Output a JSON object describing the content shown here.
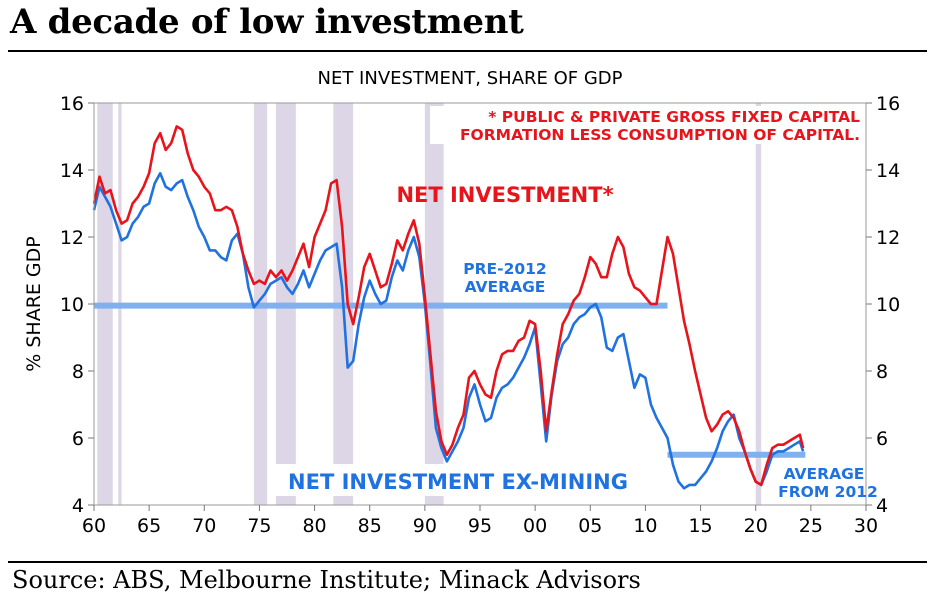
{
  "headline": "A decade of low investment",
  "source": "Source: ABS, Melbourne Institute; Minack Advisors",
  "colors": {
    "net_investment": "#e8141c",
    "net_investment_ex_mining": "#1f72e0",
    "average_band": "#7fb0ef",
    "recession_shade": "#ddd6e6"
  },
  "chart_data": {
    "type": "line",
    "title": "NET INVESTMENT, SHARE OF GDP",
    "ylabel": "% SHARE GDP",
    "xlabel": "",
    "xlim": [
      1960,
      2030
    ],
    "ylim": [
      4,
      16
    ],
    "x_ticks": [
      1960,
      1965,
      1970,
      1975,
      1980,
      1985,
      1990,
      1995,
      2000,
      2005,
      2010,
      2015,
      2020,
      2025,
      2030
    ],
    "x_tick_labels": [
      "60",
      "65",
      "70",
      "75",
      "80",
      "85",
      "90",
      "95",
      "00",
      "05",
      "10",
      "15",
      "20",
      "25",
      "30"
    ],
    "y_ticks": [
      4,
      6,
      8,
      10,
      12,
      14,
      16
    ],
    "y_tick_labels": [
      "4",
      "6",
      "8",
      "10",
      "12",
      "14",
      "16"
    ],
    "recession_periods": [
      [
        1960.3,
        1961.7
      ],
      [
        1962.2,
        1962.5
      ],
      [
        1974.5,
        1975.7
      ],
      [
        1976.5,
        1978.3
      ],
      [
        1981.7,
        1983.5
      ],
      [
        1990.0,
        1991.7
      ],
      [
        2020.0,
        2020.5
      ]
    ],
    "series": [
      {
        "name": "NET INVESTMENT*",
        "x": [
          1960.0,
          1960.5,
          1961.0,
          1961.5,
          1962.0,
          1962.5,
          1963.0,
          1963.5,
          1964.0,
          1964.5,
          1965.0,
          1965.5,
          1966.0,
          1966.5,
          1967.0,
          1967.5,
          1968.0,
          1968.5,
          1969.0,
          1969.5,
          1970.0,
          1970.5,
          1971.0,
          1971.5,
          1972.0,
          1972.5,
          1973.0,
          1973.5,
          1974.0,
          1974.5,
          1975.0,
          1975.5,
          1976.0,
          1976.5,
          1977.0,
          1977.5,
          1978.0,
          1978.5,
          1979.0,
          1979.5,
          1980.0,
          1980.5,
          1981.0,
          1981.5,
          1982.0,
          1982.5,
          1983.0,
          1983.5,
          1984.0,
          1984.5,
          1985.0,
          1985.5,
          1986.0,
          1986.5,
          1987.0,
          1987.5,
          1988.0,
          1988.5,
          1989.0,
          1989.5,
          1990.0,
          1990.5,
          1991.0,
          1991.5,
          1992.0,
          1992.5,
          1993.0,
          1993.5,
          1994.0,
          1994.5,
          1995.0,
          1995.5,
          1996.0,
          1996.5,
          1997.0,
          1997.5,
          1998.0,
          1998.5,
          1999.0,
          1999.5,
          2000.0,
          2000.5,
          2001.0,
          2001.5,
          2002.0,
          2002.5,
          2003.0,
          2003.5,
          2004.0,
          2004.5,
          2005.0,
          2005.5,
          2006.0,
          2006.5,
          2007.0,
          2007.5,
          2008.0,
          2008.5,
          2009.0,
          2009.5,
          2010.0,
          2010.5,
          2011.0,
          2011.5,
          2012.0,
          2012.5,
          2013.0,
          2013.5,
          2014.0,
          2014.5,
          2015.0,
          2015.5,
          2016.0,
          2016.5,
          2017.0,
          2017.5,
          2018.0,
          2018.5,
          2019.0,
          2019.5,
          2020.0,
          2020.5,
          2021.0,
          2021.5,
          2022.0,
          2022.5,
          2023.0,
          2023.5,
          2024.0,
          2024.3
        ],
        "values": [
          13.0,
          13.8,
          13.3,
          13.4,
          12.8,
          12.4,
          12.5,
          13.0,
          13.2,
          13.5,
          13.9,
          14.8,
          15.1,
          14.6,
          14.8,
          15.3,
          15.2,
          14.5,
          14.0,
          13.8,
          13.5,
          13.3,
          12.8,
          12.8,
          12.9,
          12.8,
          12.3,
          11.5,
          11.0,
          10.6,
          10.7,
          10.6,
          11.0,
          10.8,
          11.0,
          10.7,
          11.0,
          11.4,
          11.8,
          11.1,
          12.0,
          12.4,
          12.8,
          13.6,
          13.7,
          12.3,
          10.0,
          9.4,
          10.2,
          11.1,
          11.5,
          11.0,
          10.5,
          10.6,
          11.2,
          11.9,
          11.6,
          12.1,
          12.5,
          11.8,
          10.2,
          8.5,
          6.8,
          5.9,
          5.5,
          5.8,
          6.3,
          6.7,
          7.8,
          8.0,
          7.6,
          7.3,
          7.2,
          8.0,
          8.5,
          8.6,
          8.6,
          8.9,
          9.0,
          9.5,
          9.4,
          8.0,
          6.2,
          7.4,
          8.5,
          9.4,
          9.7,
          10.1,
          10.3,
          10.8,
          11.4,
          11.2,
          10.8,
          10.8,
          11.5,
          12.0,
          11.7,
          10.9,
          10.5,
          10.4,
          10.2,
          10.0,
          10.0,
          11.0,
          12.0,
          11.5,
          10.5,
          9.5,
          8.8,
          8.0,
          7.3,
          6.6,
          6.2,
          6.4,
          6.7,
          6.8,
          6.6,
          6.2,
          5.6,
          5.1,
          4.7,
          4.6,
          5.2,
          5.7,
          5.8,
          5.8,
          5.9,
          6.0,
          6.1,
          5.7
        ],
        "color": "#e8141c"
      },
      {
        "name": "NET INVESTMENT EX-MINING",
        "x": [
          1960.0,
          1960.5,
          1961.0,
          1961.5,
          1962.0,
          1962.5,
          1963.0,
          1963.5,
          1964.0,
          1964.5,
          1965.0,
          1965.5,
          1966.0,
          1966.5,
          1967.0,
          1967.5,
          1968.0,
          1968.5,
          1969.0,
          1969.5,
          1970.0,
          1970.5,
          1971.0,
          1971.5,
          1972.0,
          1972.5,
          1973.0,
          1973.5,
          1974.0,
          1974.5,
          1975.0,
          1975.5,
          1976.0,
          1976.5,
          1977.0,
          1977.5,
          1978.0,
          1978.5,
          1979.0,
          1979.5,
          1980.0,
          1980.5,
          1981.0,
          1981.5,
          1982.0,
          1982.5,
          1983.0,
          1983.5,
          1984.0,
          1984.5,
          1985.0,
          1985.5,
          1986.0,
          1986.5,
          1987.0,
          1987.5,
          1988.0,
          1988.5,
          1989.0,
          1989.5,
          1990.0,
          1990.5,
          1991.0,
          1991.5,
          1992.0,
          1992.5,
          1993.0,
          1993.5,
          1994.0,
          1994.5,
          1995.0,
          1995.5,
          1996.0,
          1996.5,
          1997.0,
          1997.5,
          1998.0,
          1998.5,
          1999.0,
          1999.5,
          2000.0,
          2000.5,
          2001.0,
          2001.5,
          2002.0,
          2002.5,
          2003.0,
          2003.5,
          2004.0,
          2004.5,
          2005.0,
          2005.5,
          2006.0,
          2006.5,
          2007.0,
          2007.5,
          2008.0,
          2008.5,
          2009.0,
          2009.5,
          2010.0,
          2010.5,
          2011.0,
          2011.5,
          2012.0,
          2012.5,
          2013.0,
          2013.5,
          2014.0,
          2014.5,
          2015.0,
          2015.5,
          2016.0,
          2016.5,
          2017.0,
          2017.5,
          2018.0,
          2018.5,
          2019.0,
          2019.5,
          2020.0,
          2020.5,
          2021.0,
          2021.5,
          2022.0,
          2022.5,
          2023.0,
          2023.5,
          2024.0,
          2024.3
        ],
        "values": [
          12.8,
          13.5,
          13.2,
          12.9,
          12.4,
          11.9,
          12.0,
          12.4,
          12.6,
          12.9,
          13.0,
          13.6,
          13.9,
          13.5,
          13.4,
          13.6,
          13.7,
          13.2,
          12.8,
          12.3,
          12.0,
          11.6,
          11.6,
          11.4,
          11.3,
          11.9,
          12.1,
          11.5,
          10.5,
          9.9,
          10.1,
          10.3,
          10.6,
          10.7,
          10.8,
          10.5,
          10.3,
          10.6,
          11.0,
          10.5,
          10.9,
          11.3,
          11.6,
          11.7,
          11.8,
          10.5,
          8.1,
          8.3,
          9.4,
          10.2,
          10.7,
          10.3,
          10.0,
          10.1,
          10.8,
          11.3,
          11.0,
          11.6,
          12.0,
          11.4,
          10.0,
          8.2,
          6.3,
          5.7,
          5.3,
          5.6,
          5.9,
          6.3,
          7.2,
          7.6,
          7.0,
          6.5,
          6.6,
          7.2,
          7.5,
          7.6,
          7.8,
          8.1,
          8.4,
          8.8,
          9.3,
          7.6,
          5.9,
          7.3,
          8.3,
          8.8,
          9.0,
          9.4,
          9.6,
          9.7,
          9.9,
          10.0,
          9.6,
          8.7,
          8.6,
          9.0,
          9.1,
          8.3,
          7.5,
          7.9,
          7.8,
          7.0,
          6.6,
          6.3,
          6.0,
          5.2,
          4.7,
          4.5,
          4.6,
          4.6,
          4.8,
          5.0,
          5.3,
          5.7,
          6.2,
          6.5,
          6.7,
          6.0,
          5.6,
          5.1,
          4.7,
          4.6,
          5.0,
          5.5,
          5.6,
          5.6,
          5.7,
          5.8,
          5.9,
          5.6
        ],
        "color": "#1f72e0"
      }
    ],
    "averages": [
      {
        "label_line1": "PRE-2012",
        "label_line2": "AVERAGE",
        "value": 9.95,
        "x_start": 1960,
        "x_end": 2012
      },
      {
        "label_line1": "AVERAGE",
        "label_line2": "FROM 2012",
        "value": 5.5,
        "x_start": 2012,
        "x_end": 2024.5
      }
    ],
    "annotations": {
      "net_investment_label": "NET INVESTMENT*",
      "ex_mining_label": "NET INVESTMENT EX-MINING",
      "footnote_line1": "* PUBLIC & PRIVATE GROSS FIXED CAPITAL",
      "footnote_line2": "FORMATION LESS CONSUMPTION OF CAPITAL."
    }
  }
}
